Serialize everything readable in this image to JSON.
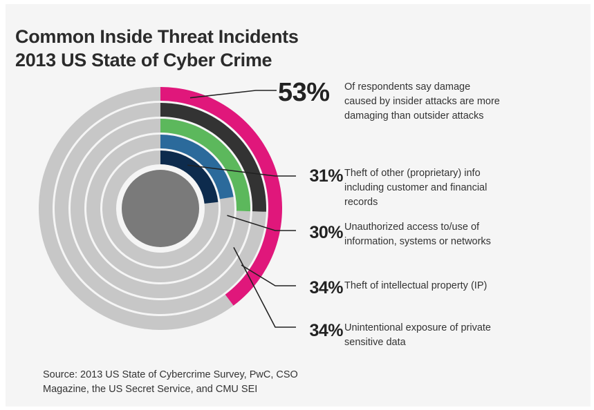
{
  "title": {
    "line1": "Common Inside Threat Incidents",
    "line2": "2013 US State of Cyber Crime"
  },
  "chart_data": {
    "type": "radial-bar",
    "title": "Common Inside Threat Incidents 2013 US State of Cyber Crime",
    "series": [
      {
        "label": "53%",
        "value": 53,
        "color": "#e0177b",
        "description": [
          "Of respondents say damage",
          "caused by insider attacks are more",
          "damaging than outsider attacks"
        ]
      },
      {
        "label": "34%",
        "value": 34,
        "color": "#333333",
        "description": [
          "Theft of intellectual property (IP)"
        ]
      },
      {
        "label": "34%",
        "value": 34,
        "color": "#5cb85c",
        "description": [
          "Unintentional exposure of private",
          "sensitive data"
        ]
      },
      {
        "label": "30%",
        "value": 30,
        "color": "#2b6a9b",
        "description": [
          "Unauthorized access to/use of",
          "information, systems or networks"
        ]
      },
      {
        "label": "31%",
        "value": 31,
        "color": "#0d2b4d",
        "description": [
          "Theft of other (proprietary) info",
          "including customer and financial",
          "records"
        ]
      }
    ],
    "track_color": "#c7c7c7",
    "center_color": "#7a7a7a"
  },
  "stats": [
    {
      "pct": "53%",
      "lines": [
        "Of respondents say damage",
        "caused by insider attacks are more",
        "damaging than outsider attacks"
      ]
    },
    {
      "pct": "31%",
      "lines": [
        "Theft of other (proprietary) info",
        "including customer and financial",
        "records"
      ]
    },
    {
      "pct": "30%",
      "lines": [
        "Unauthorized access to/use of",
        "information, systems or networks"
      ]
    },
    {
      "pct": "34%",
      "lines": [
        "Theft of intellectual property (IP)"
      ]
    },
    {
      "pct": "34%",
      "lines": [
        "Unintentional exposure of private",
        "sensitive data"
      ]
    }
  ],
  "source": {
    "line1": "Source: 2013 US State of Cybercrime Survey, PwC, CSO",
    "line2": "Magazine, the US Secret Service, and CMU SEI"
  }
}
